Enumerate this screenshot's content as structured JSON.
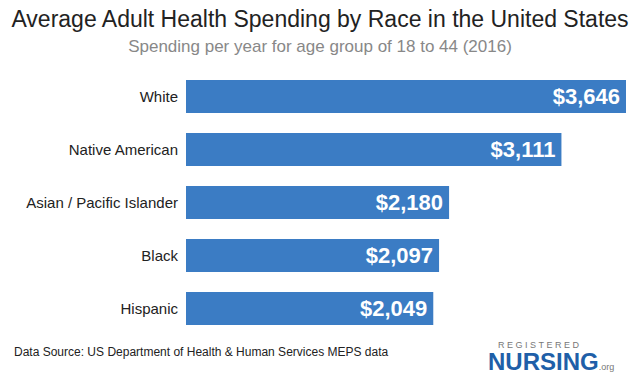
{
  "chart_data": {
    "type": "bar",
    "title": "Average Adult Health Spending by Race in the United States",
    "subtitle": "Spending per year for age group of 18 to 44 (2016)",
    "categories": [
      "White",
      "Native American",
      "Asian / Pacific Islander",
      "Black",
      "Hispanic"
    ],
    "values": [
      3646,
      3111,
      2180,
      2097,
      2049
    ],
    "value_labels": [
      "$3,646",
      "$3,111",
      "$2,180",
      "$2,097",
      "$2,049"
    ],
    "color": "#3b7cc4",
    "orientation": "horizontal",
    "data_labels": true,
    "tick_labels": "y",
    "grid": false,
    "xlim": [
      0,
      3646
    ],
    "source": "Data Source: US Department of Health & Human Services MEPS data",
    "logo": [
      "REGISTERED",
      "NURSING",
      ".org"
    ]
  }
}
